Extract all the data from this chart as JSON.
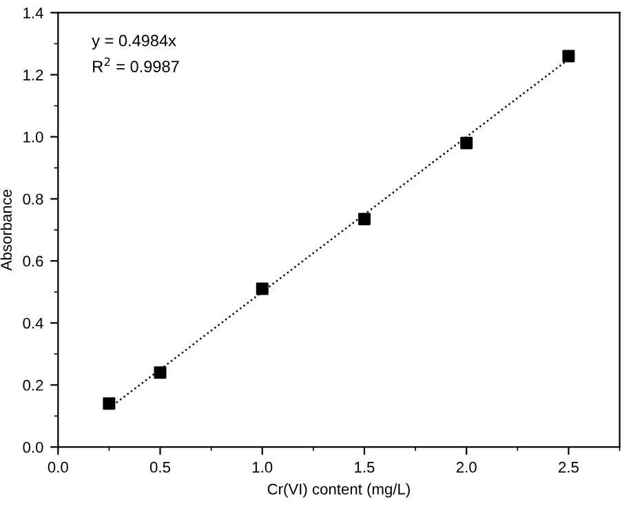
{
  "chart_data": {
    "type": "scatter",
    "xlabel": "Cr(VI) content (mg/L)",
    "ylabel": "Absorbance",
    "x": [
      0.25,
      0.5,
      1.0,
      1.5,
      2.0,
      2.5
    ],
    "series": [
      {
        "color": "#000000",
        "marker": "square",
        "values": [
          0.14,
          0.24,
          0.51,
          0.735,
          0.98,
          1.26
        ]
      },
      {
        "type": "line",
        "color": "#000000",
        "line_style": "dotted",
        "marker": "none",
        "x": [
          0.25,
          2.5
        ],
        "values": [
          0.125,
          1.25
        ]
      }
    ],
    "annotations": [
      "y = 0.4984x",
      "R$^{2}$ = 0.9987"
    ],
    "xlim": [
      0,
      2.75
    ],
    "xticks": [
      {
        "value": 0,
        "label": "0.0"
      },
      0.5,
      {
        "value": 1,
        "label": "1.0"
      },
      1.5,
      {
        "value": 2,
        "label": "2.0"
      },
      2.5
    ],
    "ylim": [
      0,
      1.4
    ],
    "yticks": [
      {
        "value": 0,
        "label": "0.0"
      },
      0.2,
      0.4,
      0.6,
      0.8,
      {
        "value": 1,
        "label": "1.0"
      },
      1.2,
      1.4
    ],
    "grid": false,
    "legend": false
  }
}
